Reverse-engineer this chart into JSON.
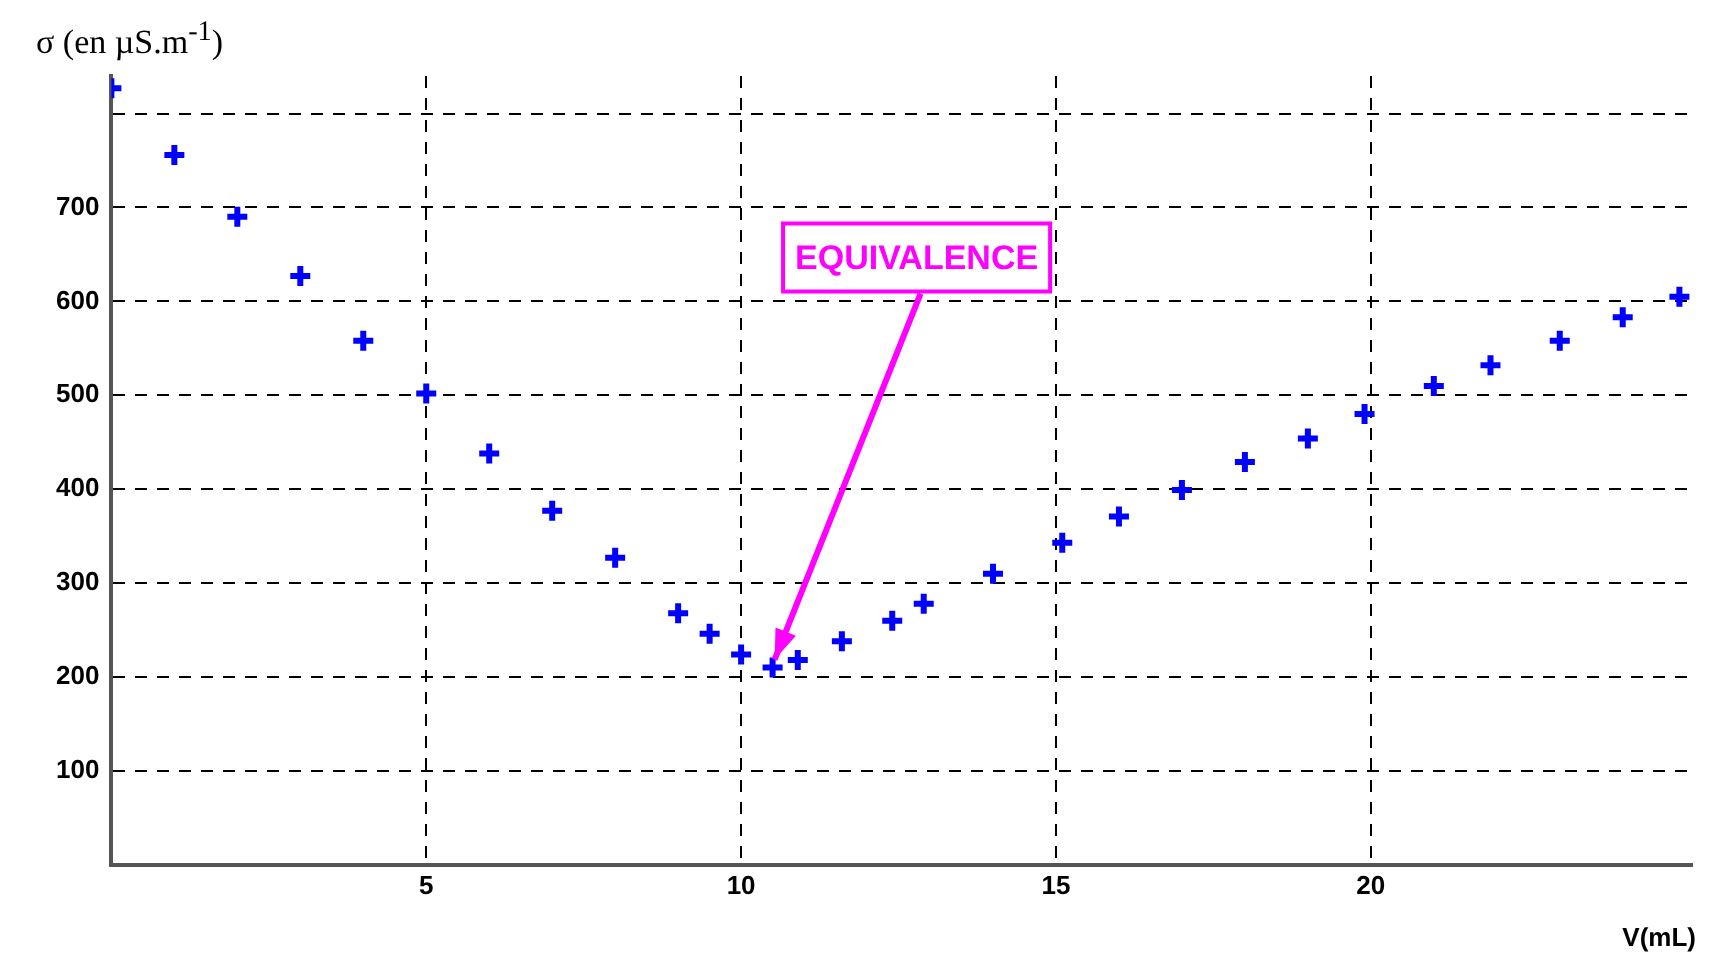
{
  "chart_data": {
    "type": "scatter",
    "xlabel": "V(mL)",
    "ylabel": "σ (en µS.m$^{-1}$)",
    "x": [
      0,
      1,
      2,
      3,
      4,
      5,
      6,
      7,
      8,
      9,
      9.5,
      10,
      10.5,
      10.9,
      11.6,
      12.4,
      12.9,
      14,
      15.1,
      16,
      17,
      18,
      19,
      19.9,
      21,
      21.9,
      23,
      24,
      24.9
    ],
    "series": [
      {
        "color": "#0000ff",
        "values": [
          827,
          756,
          690,
          627,
          558,
          502,
          438,
          377,
          327,
          268,
          246,
          224,
          210,
          218,
          238,
          260,
          278,
          310,
          343,
          371,
          399,
          429,
          454,
          480,
          510,
          532,
          558,
          583,
          605
        ]
      }
    ],
    "xlim": [
      0,
      25.1
    ],
    "ylim": [
      0,
      840
    ],
    "xticks": [
      5,
      10,
      15,
      20
    ],
    "yticks": [
      100,
      200,
      300,
      400,
      500,
      600,
      700,
      {
        "value": 800,
        "label": null
      }
    ],
    "grid": true,
    "marker": "cross",
    "legend": false,
    "annotations": [
      {
        "text": "EQUIVALENCE",
        "x": 10.5,
        "y": 210
      }
    ]
  }
}
